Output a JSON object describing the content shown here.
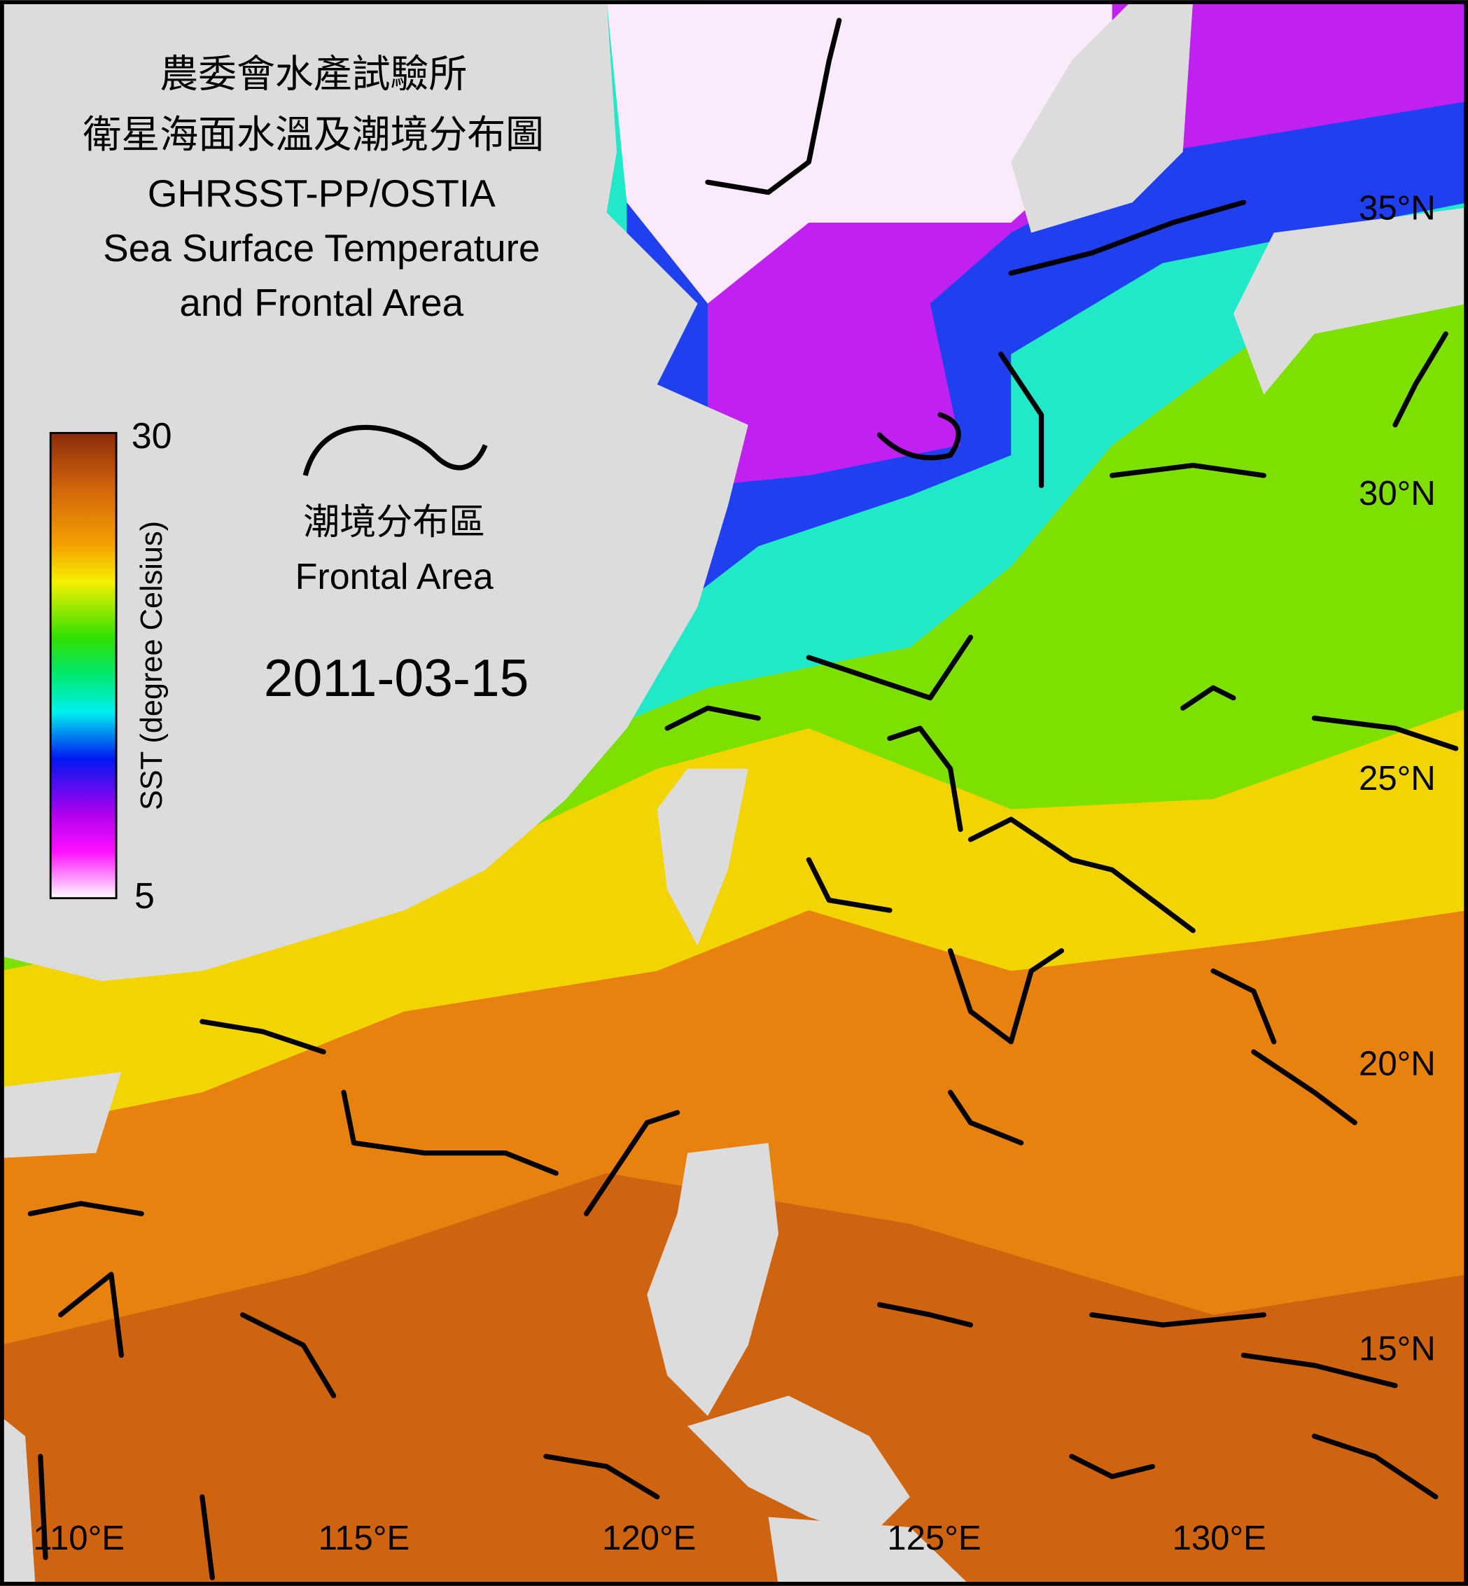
{
  "title": [
    "農委會水產試驗所",
    "衛星海面水溫及潮境分布圖",
    "GHRSST-PP/OSTIA",
    "Sea Surface Temperature",
    "and Frontal Area"
  ],
  "colorbar": {
    "label": "SST (degree Celsius)",
    "max": 30,
    "min": 5
  },
  "legend": {
    "label_zh": "潮境分布區",
    "label_en": "Frontal Area"
  },
  "date": "2011-03-15",
  "latitude_labels": [
    "35°N",
    "30°N",
    "25°N",
    "20°N",
    "15°N"
  ],
  "longitude_labels": [
    "110°E",
    "115°E",
    "120°E",
    "125°E",
    "130°E"
  ]
}
